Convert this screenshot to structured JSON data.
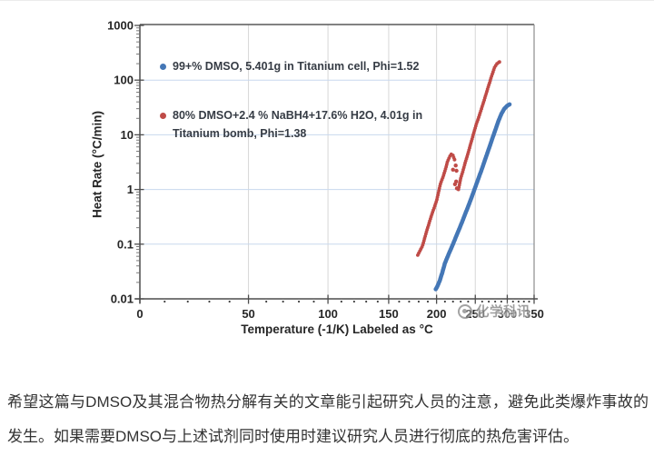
{
  "page": {
    "background": "#ffffff"
  },
  "watermark": {
    "icon": "circle-logo-icon",
    "text": "化学科讯",
    "color": "#8b8b8b"
  },
  "caption": {
    "text": "希望这篇与DMSO及其混合物热分解有关的文章能引起研究人员的注意，避免此类爆炸事故的发生。如果需要DMSO与上述试剂同时使用时建议研究人员进行彻底的热危害评估。"
  },
  "chart_data": {
    "type": "scatter",
    "title": "",
    "x_axis": {
      "label": "Temperature (-1/K) Labeled as °C",
      "scale": "reciprocal-kelvin (-1/K) spacing, labeled in °C",
      "tick_labels": [
        "0",
        "50",
        "100",
        "150",
        "200",
        "250",
        "300",
        "350"
      ],
      "tick_values_c": [
        0,
        50,
        100,
        150,
        200,
        250,
        300,
        350
      ],
      "minor_tick_step_c": 10,
      "range_c": [
        0,
        350
      ]
    },
    "y_axis": {
      "label": "Heat Rate (°C/min)",
      "scale": "log10",
      "tick_labels": [
        "1000",
        "100",
        "10",
        "1",
        "0.1",
        "0.01"
      ],
      "tick_values": [
        1000,
        100,
        10,
        1,
        0.1,
        0.01
      ],
      "range": [
        0.01,
        1000
      ]
    },
    "grid": {
      "horizontal_color": "#c8d8ee",
      "vertical_color": "#d7d7d7"
    },
    "axis_color": "#4d4d4d",
    "border_top_color": "#595959",
    "border_right_color": "#8c8c8c",
    "tick_text_color": "#262626",
    "legend_position": "top-left-inside",
    "series": [
      {
        "id": "dmso-pure",
        "name": "99+% DMSO, 5.401g in Titanium cell, Phi=1.52",
        "legend_lines": [
          "99+% DMSO, 5.401g in Titanium cell, Phi=1.52"
        ],
        "color": "#4477b6",
        "marker_radius": 2.3,
        "dot_spacing": 1.4,
        "segments_T_rate": [
          [
            [
              199,
              0.015
            ],
            [
              201,
              0.017
            ],
            [
              204,
              0.022
            ],
            [
              207,
              0.031
            ],
            [
              210,
              0.045
            ],
            [
              215,
              0.068
            ],
            [
              220,
              0.1
            ],
            [
              225,
              0.15
            ],
            [
              230,
              0.22
            ],
            [
              235,
              0.33
            ],
            [
              240,
              0.49
            ],
            [
              245,
              0.73
            ],
            [
              250,
              1.1
            ],
            [
              255,
              1.65
            ],
            [
              260,
              2.45
            ],
            [
              265,
              3.7
            ],
            [
              270,
              5.5
            ],
            [
              275,
              8.2
            ],
            [
              280,
              12
            ],
            [
              285,
              17.5
            ],
            [
              290,
              24
            ],
            [
              295,
              30
            ],
            [
              300,
              34
            ],
            [
              304,
              36
            ]
          ]
        ],
        "scatter_points_T_rate": []
      },
      {
        "id": "dmso-nabh4-h2o-mixture",
        "name": "80% DMSO+2.4 % NaBH4+17.6% H2O, 4.01g in Titanium bomb, Phi=1.38",
        "legend_lines": [
          "80% DMSO+2.4 % NaBH4+17.6% H2O, 4.01g in",
          "Titanium bomb, Phi=1.38"
        ],
        "color": "#bf4b47",
        "marker_radius": 1.9,
        "dot_spacing": 2.5,
        "segments_T_rate": [
          [
            [
              179,
              0.063
            ],
            [
              184,
              0.092
            ],
            [
              189,
              0.18
            ],
            [
              194,
              0.33
            ],
            [
              200,
              0.62
            ],
            [
              203,
              1.0
            ],
            [
              205,
              1.33
            ],
            [
              208,
              1.75
            ],
            [
              211,
              2.45
            ],
            [
              213,
              3.2
            ],
            [
              216,
              4.05
            ],
            [
              218,
              4.45
            ],
            [
              220,
              4.2
            ],
            [
              222,
              3.5
            ]
          ],
          [
            [
              227,
              1.0
            ],
            [
              230,
              1.6
            ],
            [
              233,
              2.2
            ],
            [
              236,
              3.1
            ],
            [
              239,
              4.2
            ],
            [
              242,
              5.8
            ],
            [
              245,
              8
            ],
            [
              248,
              11
            ],
            [
              251,
              15
            ],
            [
              255,
              21
            ],
            [
              259,
              30
            ],
            [
              263,
              43
            ],
            [
              267,
              62
            ],
            [
              271,
              88
            ],
            [
              275,
              125
            ],
            [
              279,
              170
            ],
            [
              283,
              200
            ],
            [
              287,
              215
            ]
          ]
        ],
        "scatter_points_T_rate": [
          [
            220,
            2.3
          ],
          [
            223.5,
            2.75
          ],
          [
            224.5,
            2.2
          ],
          [
            224,
            1.4
          ],
          [
            222.5,
            1.25
          ],
          [
            225,
            1.05
          ]
        ]
      }
    ]
  }
}
